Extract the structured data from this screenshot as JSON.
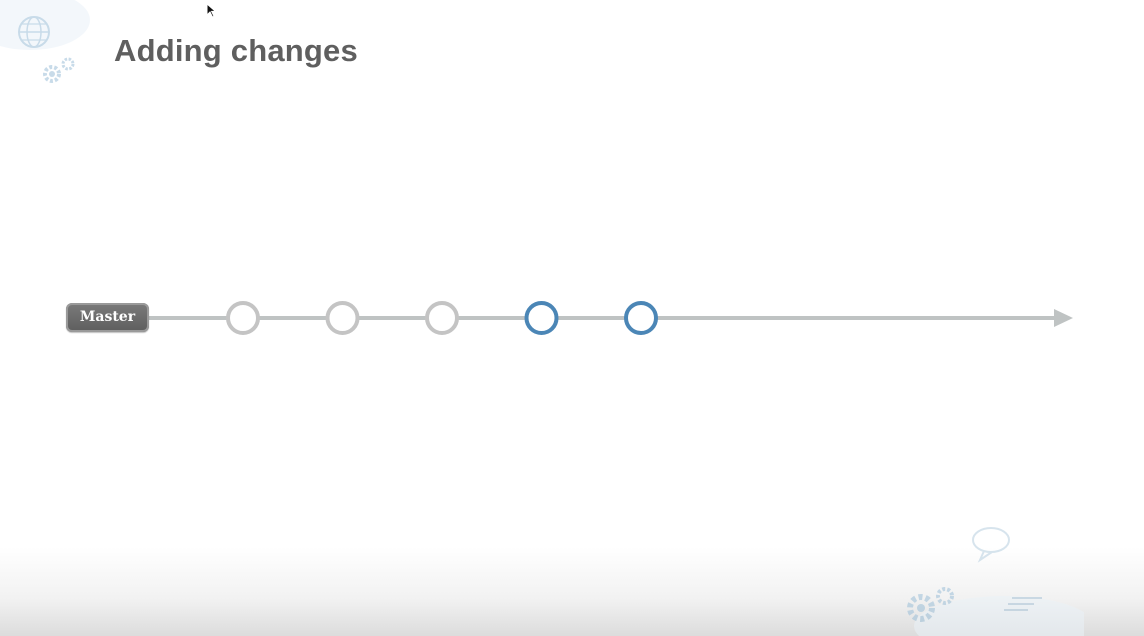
{
  "slide": {
    "title": "Adding changes"
  },
  "diagram": {
    "branch_label": "Master",
    "commits": [
      {
        "state": "existing",
        "color": "#c4c4c4"
      },
      {
        "state": "existing",
        "color": "#c4c4c4"
      },
      {
        "state": "existing",
        "color": "#c4c4c4"
      },
      {
        "state": "new",
        "color": "#4b86b6"
      },
      {
        "state": "new",
        "color": "#4b86b6"
      }
    ],
    "timeline_color": "#bfc3c3",
    "arrow": "right-arrow-icon"
  },
  "decorations": {
    "top_left_icons": [
      "globe-icon",
      "gear-icon"
    ],
    "bottom_right_icons": [
      "speech-bubble-icon",
      "gear-icon",
      "cloud-icon"
    ]
  },
  "cursor": "mouse-pointer-icon"
}
